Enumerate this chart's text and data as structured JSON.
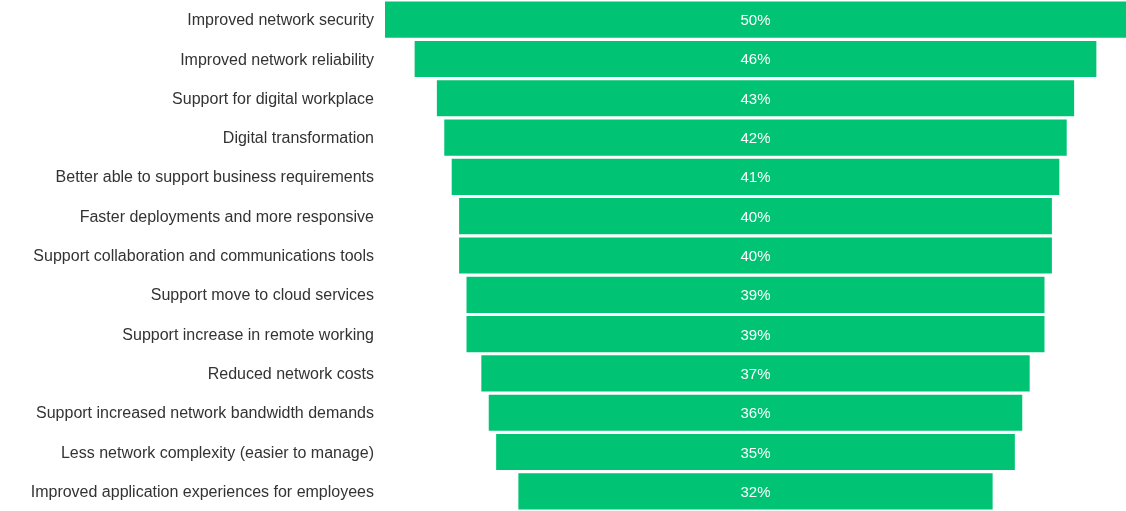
{
  "chart_data": {
    "type": "other",
    "categories": [
      "Improved network security",
      "Improved network reliability",
      "Support for digital workplace",
      "Digital transformation",
      "Better able to support business requirements",
      "Faster deployments and more responsive",
      "Support collaboration and communications tools",
      "Support move to cloud services",
      "Support increase in remote working",
      "Reduced network costs",
      "Support increased network bandwidth demands",
      "Less network complexity (easier to manage)",
      "Improved application experiences for employees"
    ],
    "values": [
      50,
      46,
      43,
      42,
      41,
      40,
      40,
      39,
      39,
      37,
      36,
      35,
      32
    ],
    "value_labels": [
      "50%",
      "46%",
      "43%",
      "42%",
      "41%",
      "40%",
      "40%",
      "39%",
      "39%",
      "37%",
      "36%",
      "35%",
      "32%"
    ],
    "color": "#00c473"
  }
}
